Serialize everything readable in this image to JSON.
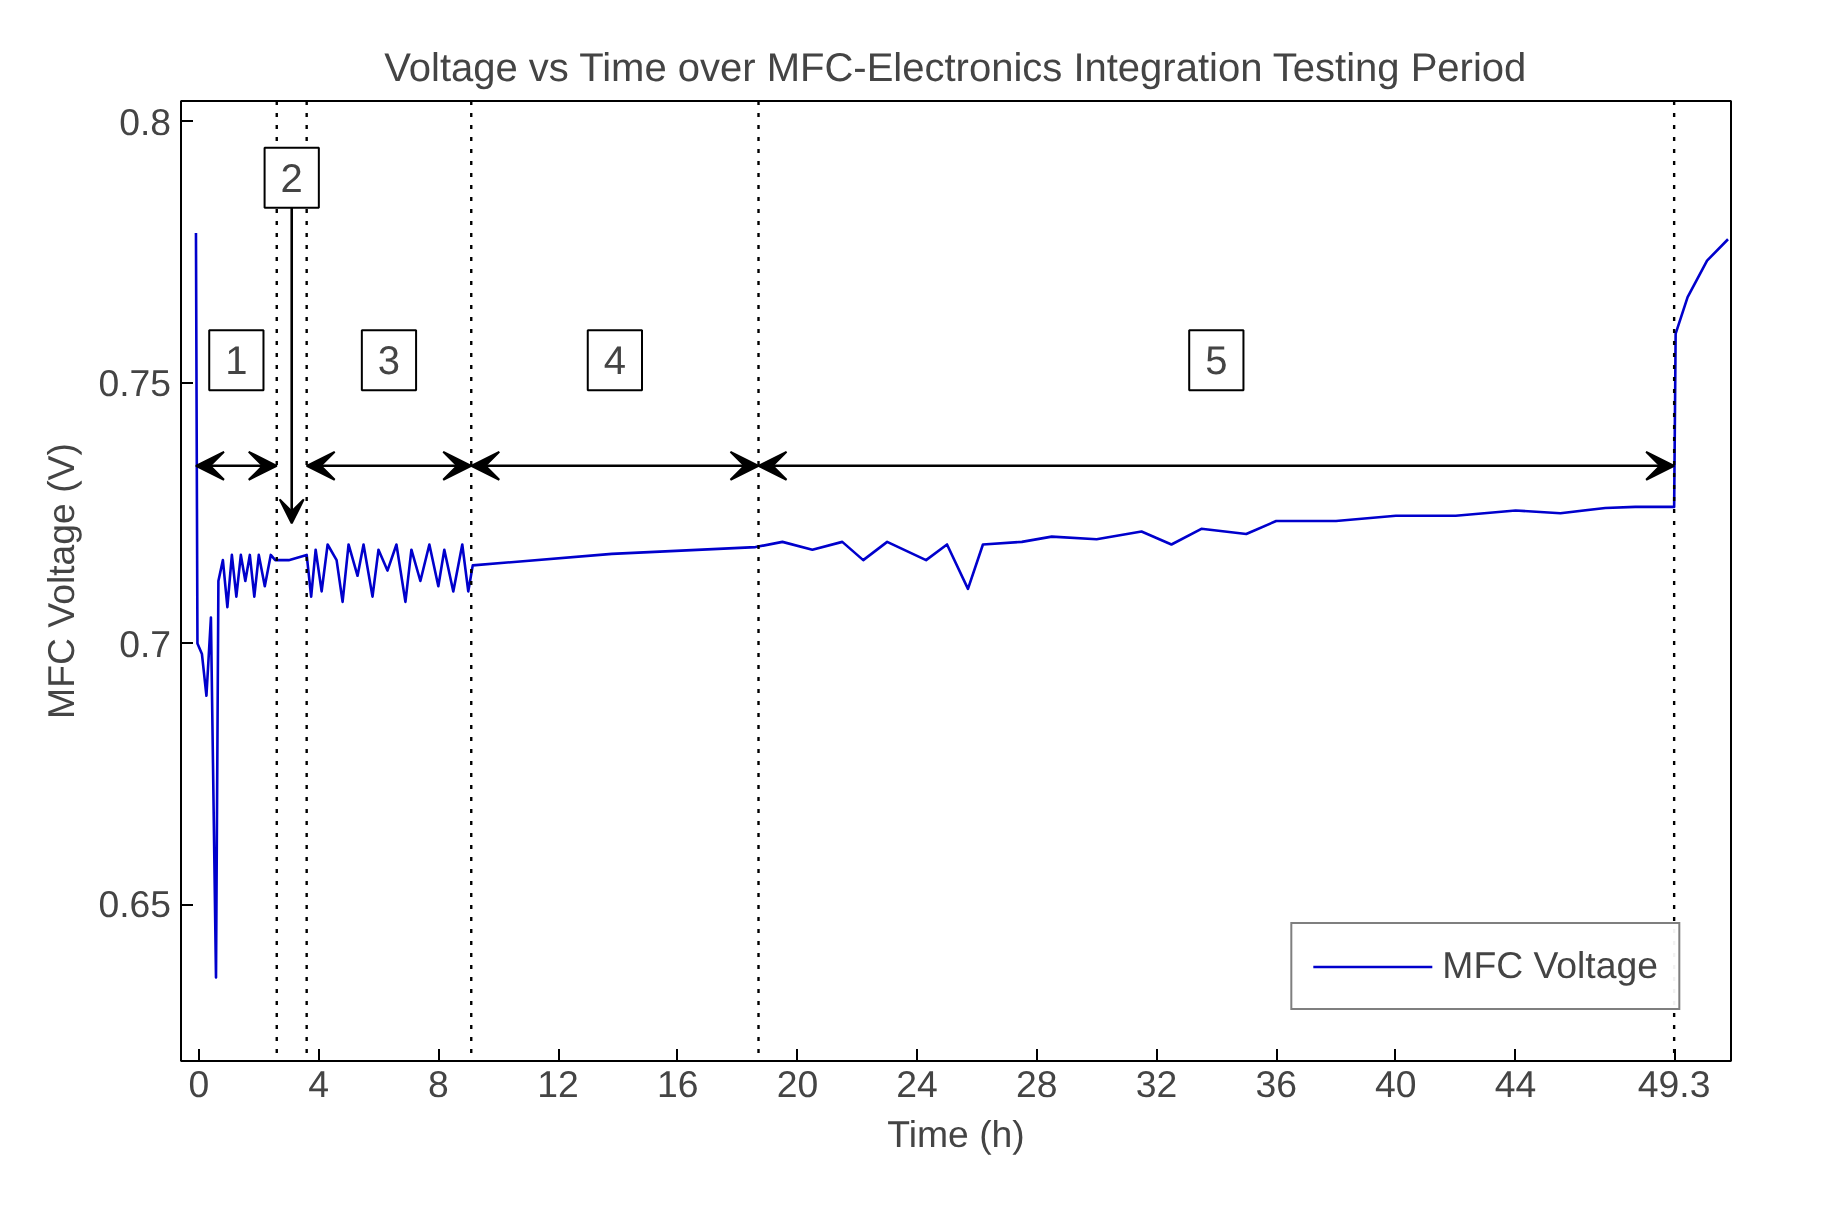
{
  "chart_data": {
    "type": "line",
    "title": "Voltage vs Time over MFC-Electronics Integration Testing Period",
    "xlabel": "Time (h)",
    "ylabel": "MFC Voltage (V)",
    "x": [
      -0.1,
      -0.05,
      0.1,
      0.25,
      0.4,
      0.57,
      0.65,
      0.8,
      0.95,
      1.1,
      1.25,
      1.4,
      1.55,
      1.7,
      1.85,
      2.0,
      2.2,
      2.4,
      2.55,
      3.0,
      3.6,
      3.75,
      3.9,
      4.1,
      4.3,
      4.6,
      4.8,
      5.0,
      5.3,
      5.5,
      5.8,
      6.0,
      6.3,
      6.6,
      6.9,
      7.1,
      7.4,
      7.7,
      8.0,
      8.2,
      8.5,
      8.8,
      9.0,
      9.15,
      13.8,
      18.6,
      19.5,
      20.5,
      21.5,
      22.2,
      23.0,
      24.3,
      25.0,
      25.7,
      26.2,
      27.5,
      28.5,
      30.0,
      31.5,
      32.5,
      33.5,
      35.0,
      36.0,
      38.0,
      40.0,
      42.0,
      44.0,
      45.5,
      47.0,
      48.0,
      49.3,
      49.35,
      49.75,
      50.4,
      51.1
    ],
    "series": [
      {
        "name": "MFC Voltage",
        "color": "#0000cc",
        "values": [
          0.7787,
          0.7,
          0.698,
          0.69,
          0.705,
          0.636,
          0.712,
          0.716,
          0.707,
          0.717,
          0.709,
          0.717,
          0.712,
          0.717,
          0.709,
          0.717,
          0.711,
          0.717,
          0.716,
          0.716,
          0.717,
          0.709,
          0.718,
          0.71,
          0.719,
          0.716,
          0.708,
          0.719,
          0.713,
          0.719,
          0.709,
          0.718,
          0.714,
          0.719,
          0.708,
          0.718,
          0.712,
          0.719,
          0.711,
          0.718,
          0.71,
          0.719,
          0.71,
          0.715,
          0.7172,
          0.7185,
          0.7195,
          0.718,
          0.7195,
          0.716,
          0.7195,
          0.716,
          0.719,
          0.7105,
          0.719,
          0.7195,
          0.7205,
          0.72,
          0.7215,
          0.719,
          0.722,
          0.721,
          0.7235,
          0.7235,
          0.7245,
          0.7245,
          0.7255,
          0.725,
          0.726,
          0.7262,
          0.7262,
          0.7594,
          0.7664,
          0.7734,
          0.7775
        ]
      }
    ],
    "xlim": [
      -0.6,
      51.2
    ],
    "ylim": [
      0.62,
      0.804
    ],
    "xticks": [
      0,
      4,
      8,
      12,
      16,
      20,
      24,
      28,
      32,
      36,
      40,
      44,
      49.3
    ],
    "yticks": [
      0.65,
      0.7,
      0.75,
      0.8
    ],
    "ref_lines": [
      {
        "axis": "x",
        "value": 2.6,
        "color": "#000000",
        "line_style": "dotted"
      },
      {
        "axis": "x",
        "value": 3.6,
        "color": "#000000",
        "line_style": "dotted"
      },
      {
        "axis": "x",
        "value": 9.1,
        "color": "#000000",
        "line_style": "dotted"
      },
      {
        "axis": "x",
        "value": 18.7,
        "color": "#000000",
        "line_style": "dotted"
      },
      {
        "axis": "x",
        "value": 49.3,
        "color": "#000000",
        "line_style": "dotted"
      }
    ],
    "annotations": [
      "1",
      "2",
      "3",
      "4",
      "5"
    ],
    "legend": "bottom right",
    "grid": false,
    "line_style": "solid",
    "marker": "none"
  }
}
